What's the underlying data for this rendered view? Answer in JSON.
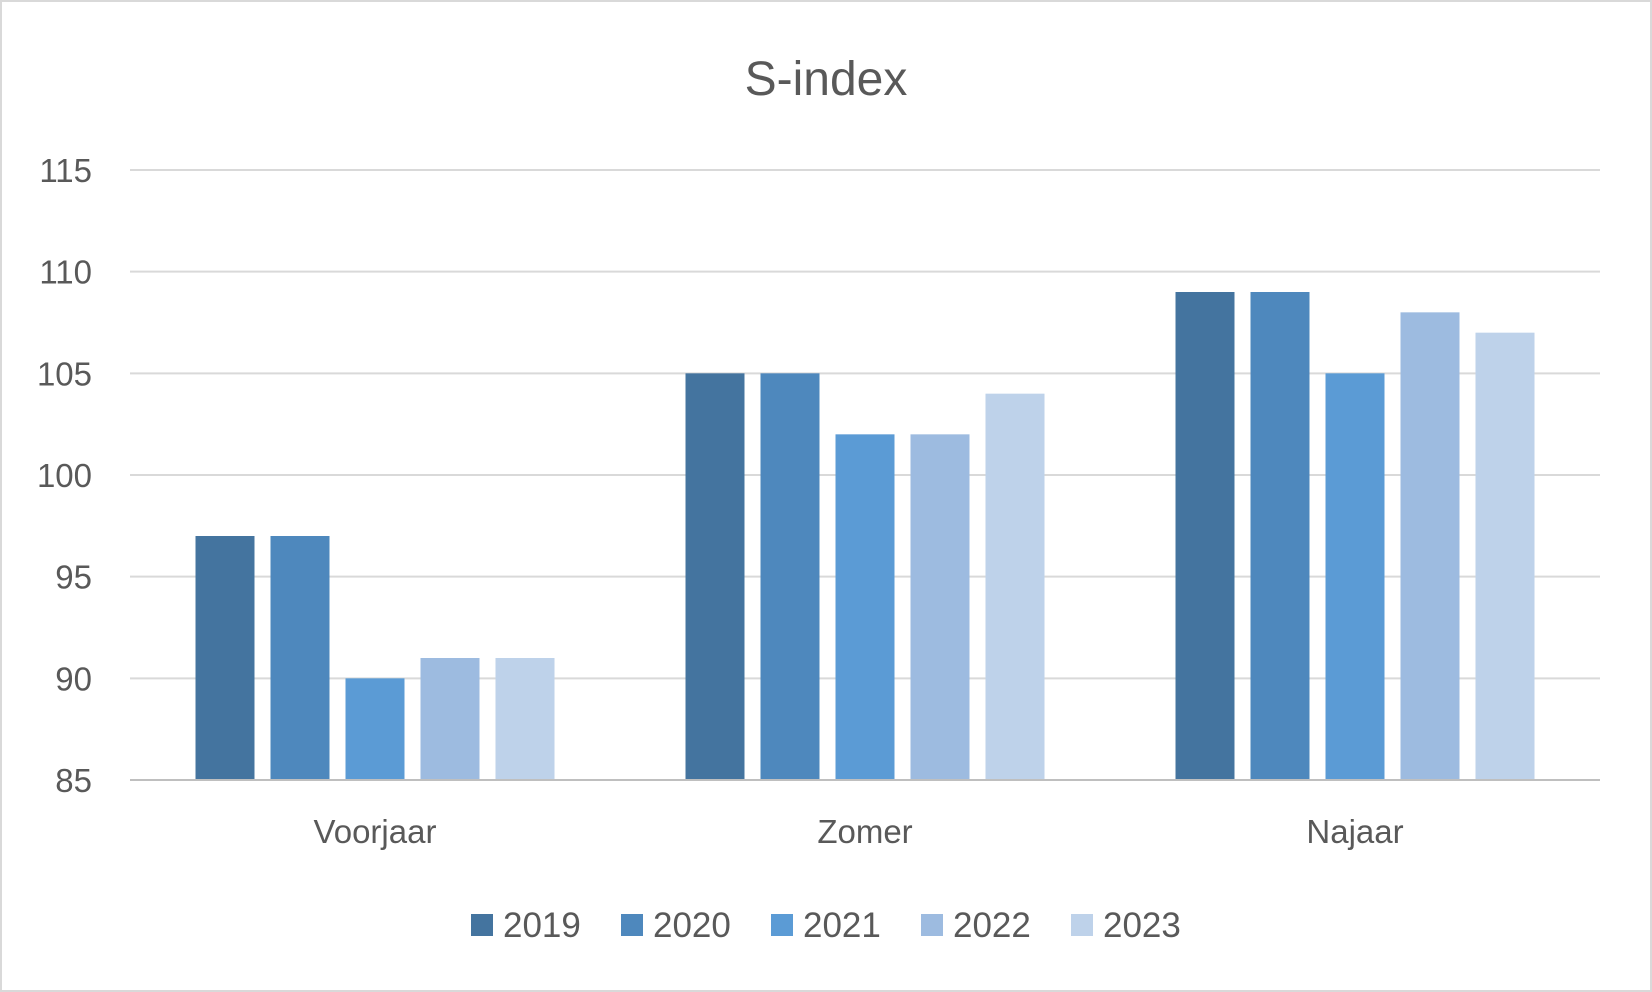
{
  "chart_data": {
    "type": "bar",
    "title": "S-index",
    "xlabel": "",
    "ylabel": "",
    "categories": [
      "Voorjaar",
      "Zomer",
      "Najaar"
    ],
    "series": [
      {
        "name": "2019",
        "color": "#44749f",
        "values": [
          97,
          105,
          109
        ]
      },
      {
        "name": "2020",
        "color": "#4e88bd",
        "values": [
          97,
          105,
          109
        ]
      },
      {
        "name": "2021",
        "color": "#5b9bd5",
        "values": [
          90,
          102,
          105
        ]
      },
      {
        "name": "2022",
        "color": "#9dbbe0",
        "values": [
          91,
          102,
          108
        ]
      },
      {
        "name": "2023",
        "color": "#bed2ea",
        "values": [
          91,
          104,
          107
        ]
      }
    ],
    "ylim": [
      85,
      115
    ],
    "yticks": [
      85,
      90,
      95,
      100,
      105,
      110,
      115
    ],
    "grid": true,
    "legend_position": "bottom"
  }
}
